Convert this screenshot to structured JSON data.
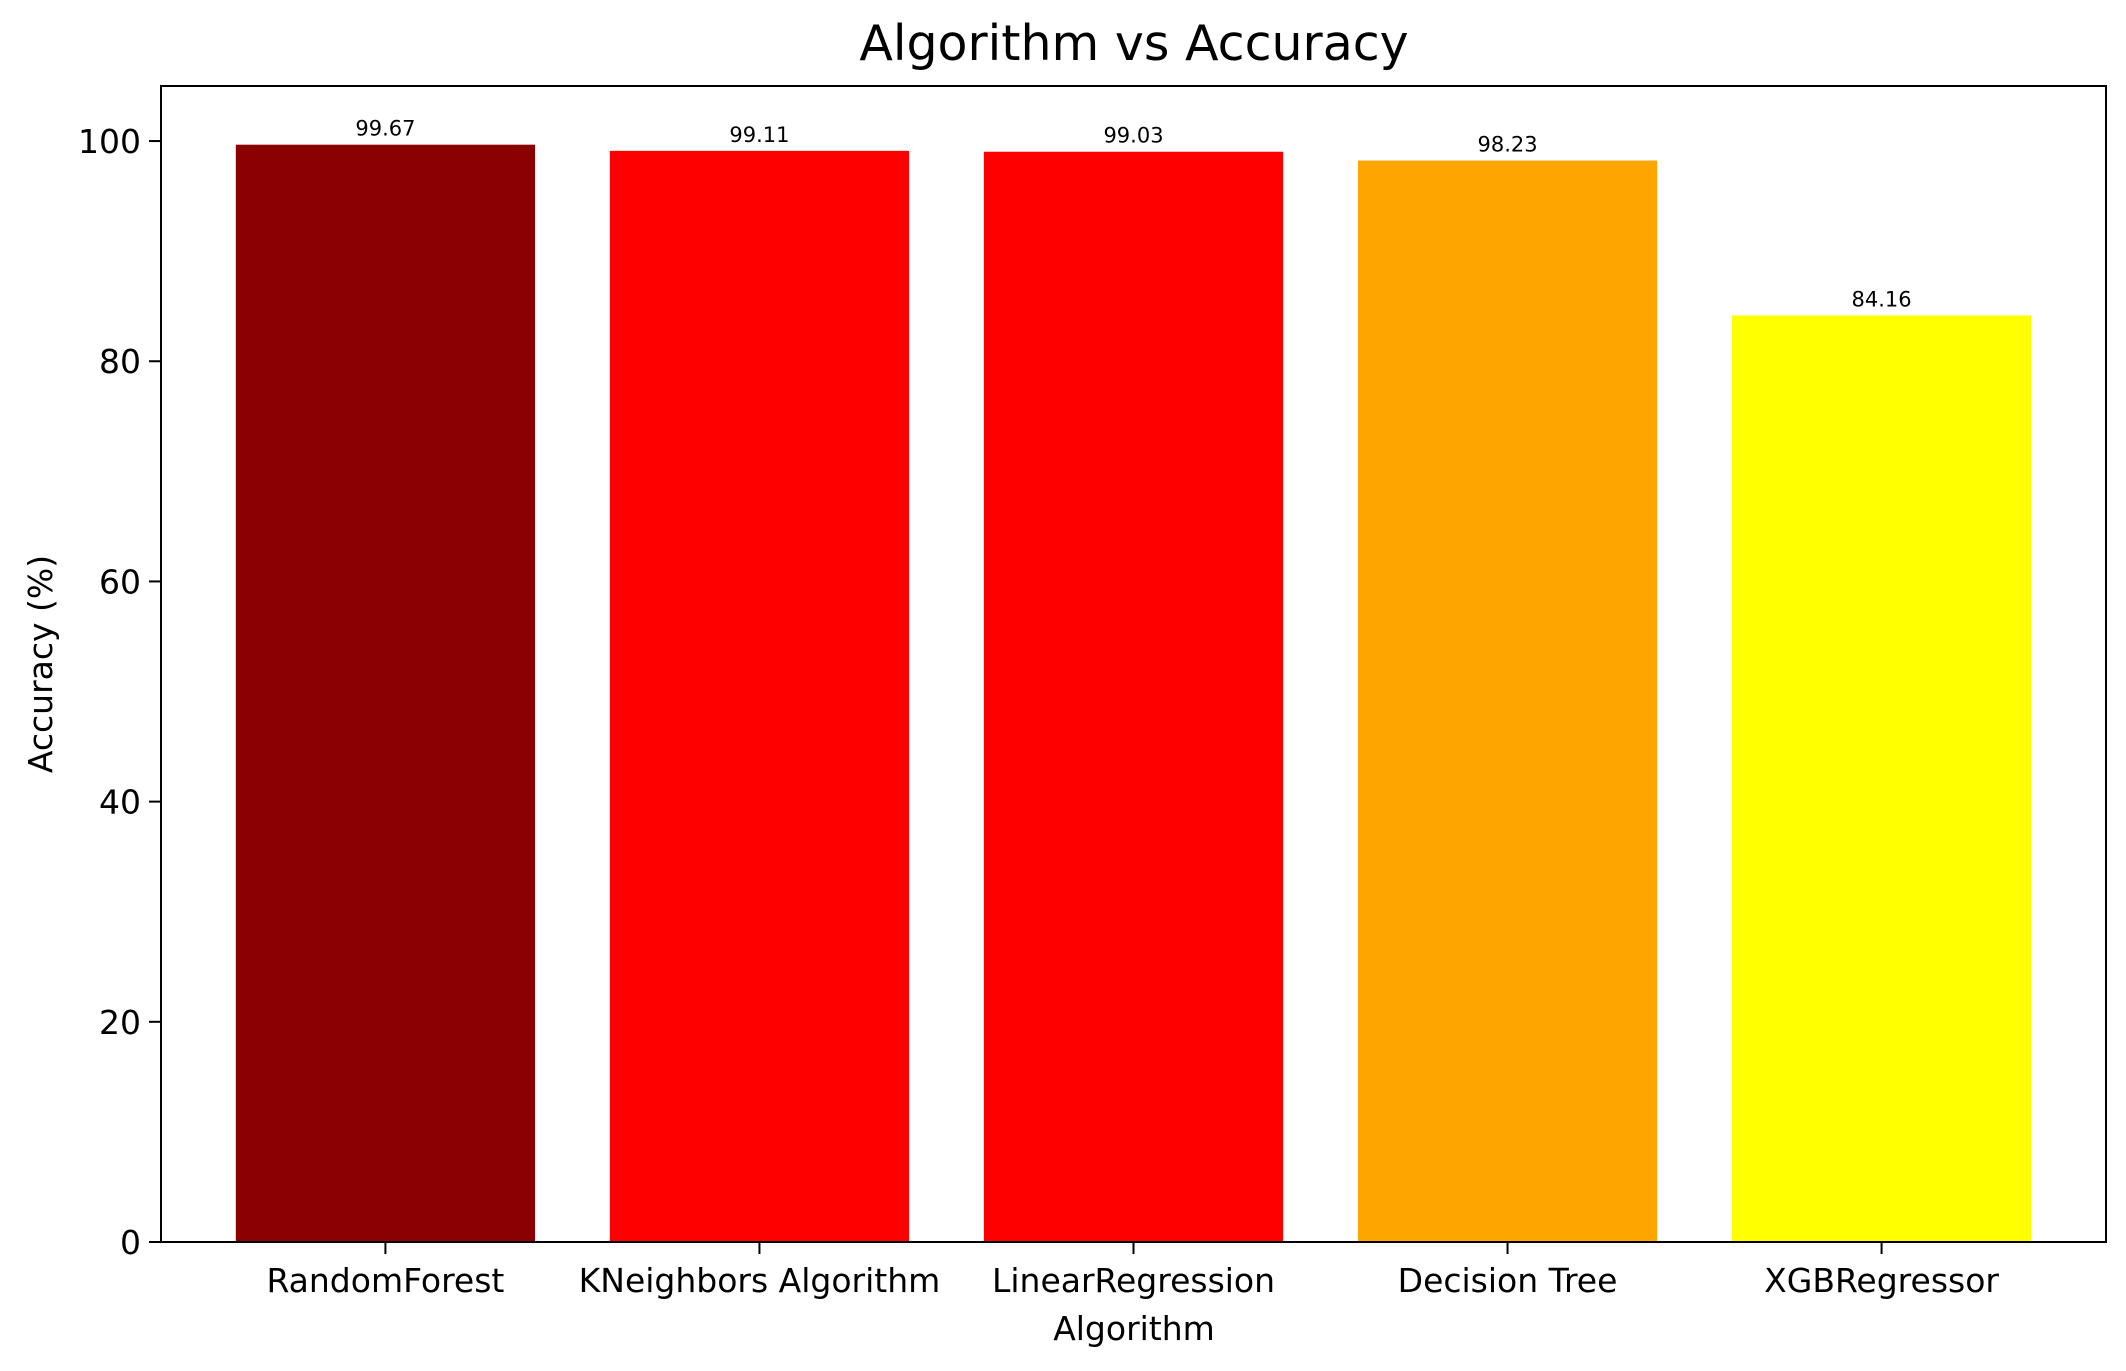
{
  "chart_data": {
    "type": "bar",
    "title": "Algorithm vs Accuracy",
    "xlabel": "Algorithm",
    "ylabel": "Accuracy (%)",
    "categories": [
      "RandomForest",
      "KNeighbors Algorithm",
      "LinearRegression",
      "Decision Tree",
      "XGBRegressor"
    ],
    "values": [
      99.67,
      99.11,
      99.03,
      98.23,
      84.16
    ],
    "data_labels": [
      "99.67",
      "99.11",
      "99.03",
      "98.23",
      "84.16"
    ],
    "colors": [
      "#8b0000",
      "#ff0000",
      "#ff0000",
      "#ffa500",
      "#ffff00"
    ],
    "ylim": [
      0,
      105
    ],
    "yticks": [
      0,
      20,
      40,
      60,
      80,
      100
    ],
    "grid": false,
    "legend": "none"
  }
}
